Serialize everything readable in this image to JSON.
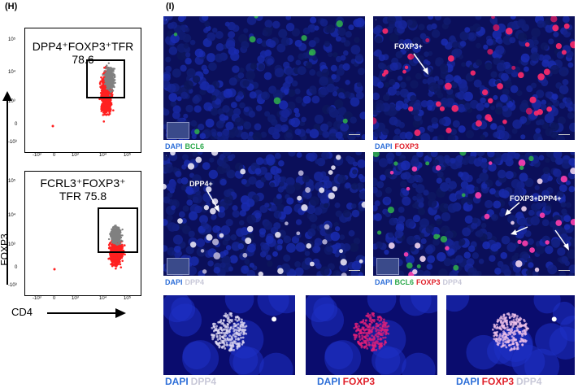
{
  "panel_h": {
    "letter": "(H)",
    "y_axis_label": "FOXP3",
    "x_axis_label": "CD4",
    "y_ticks": [
      "10⁵",
      "10⁴",
      "10³",
      "0",
      "-10³"
    ],
    "x_ticks": [
      "-10³",
      "0",
      "10³",
      "10⁴",
      "10⁵"
    ],
    "plot1": {
      "gate_label_line1": "DPP4⁺FOXP3⁺TFR",
      "gate_label_line2": "78.6"
    },
    "plot2": {
      "gate_label_line1": "FCRL3⁺FOXP3⁺",
      "gate_label_line2": "TFR 75.8"
    },
    "colors": {
      "red": "#ff2020",
      "gray": "#808080"
    }
  },
  "panel_i": {
    "letter": "(I)",
    "images": [
      {
        "captions": [
          "DAPI",
          "BCL6"
        ],
        "annotations": []
      },
      {
        "captions": [
          "DAPI",
          "FOXP3"
        ],
        "annotations": [
          "FOXP3+"
        ]
      },
      {
        "captions": [
          "DAPI",
          "DPP4"
        ],
        "annotations": [
          "DPP4+"
        ]
      },
      {
        "captions": [
          "DAPI",
          "BCL6",
          "FOXP3",
          "DPP4"
        ],
        "annotations": [
          "FOXP3+DPP4+"
        ]
      },
      {
        "captions": [
          "DAPI",
          "DPP4"
        ],
        "annotations": []
      },
      {
        "captions": [
          "DAPI",
          "FOXP3"
        ],
        "annotations": []
      },
      {
        "captions": [
          "DAPI",
          "FOXP3",
          "DPP4"
        ],
        "annotations": []
      }
    ],
    "colors": {
      "dapi": "#2e6fd8",
      "bcl6": "#2aa84a",
      "foxp3": "#e0202a",
      "dpp4": "#c8c8d8"
    }
  }
}
